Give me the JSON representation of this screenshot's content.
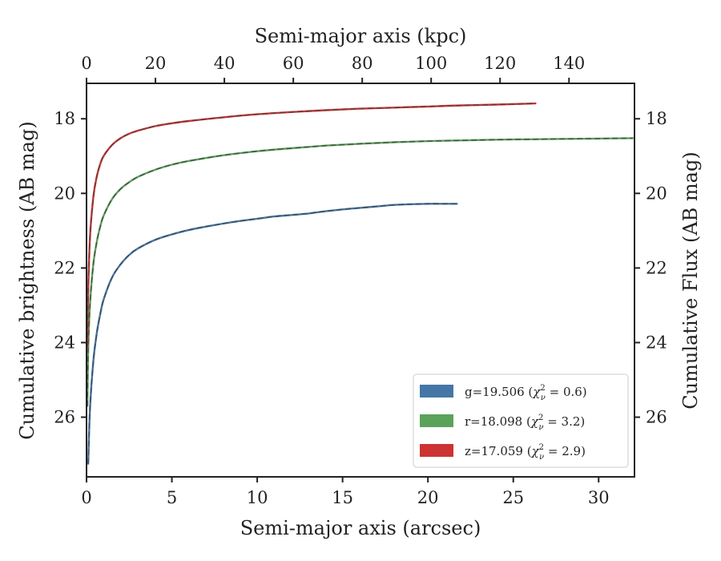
{
  "chart_data": {
    "type": "line",
    "x_bottom": {
      "label": "Semi-major axis (arcsec)",
      "range": [
        0,
        32.1
      ],
      "ticks": [
        "0",
        "5",
        "10",
        "15",
        "20",
        "25",
        "30"
      ]
    },
    "x_top": {
      "label": "Semi-major axis (kpc)",
      "range": [
        0,
        159
      ],
      "ticks": [
        "0",
        "20",
        "40",
        "60",
        "80",
        "100",
        "120",
        "140"
      ]
    },
    "y_left": {
      "label": "Cumulative brightness (AB mag)",
      "range": [
        17.05,
        27.6
      ],
      "inverted": true,
      "ticks": [
        "18",
        "20",
        "22",
        "24",
        "26"
      ]
    },
    "y_right": {
      "label": "Cumulative Flux (AB mag)",
      "range": [
        17.05,
        27.6
      ],
      "inverted": true,
      "ticks": [
        "18",
        "20",
        "22",
        "24",
        "26"
      ]
    },
    "grid": false,
    "legend": {
      "placement": "lower-right",
      "entries": [
        {
          "prefix": "g=19.506 (",
          "math": "χ",
          "sub": "ν",
          "sup": "2",
          "suffix": " = 0.6)",
          "color": "#4477a6"
        },
        {
          "prefix": "r=18.098 (",
          "math": "χ",
          "sub": "ν",
          "sup": "2",
          "suffix": " = 3.2)",
          "color": "#5ba35b"
        },
        {
          "prefix": "z=17.059 (",
          "math": "χ",
          "sub": "ν",
          "sup": "2",
          "suffix": " = 2.9)",
          "color": "#cc3333"
        }
      ]
    },
    "series": [
      {
        "name": "g",
        "color": "#4477a6",
        "x": [
          0.1,
          0.2,
          0.4,
          0.6,
          0.8,
          1.0,
          1.5,
          2.0,
          2.5,
          3.0,
          4.0,
          5.0,
          6.0,
          7.0,
          8.0,
          9.0,
          10.0,
          11.0,
          12.0,
          13.0,
          14.0,
          15.0,
          16.0,
          17.0,
          18.0,
          19.0,
          20.0,
          21.0,
          21.7
        ],
        "y": [
          27.25,
          25.8,
          24.5,
          23.75,
          23.25,
          22.85,
          22.25,
          21.9,
          21.65,
          21.48,
          21.25,
          21.1,
          20.98,
          20.89,
          20.81,
          20.74,
          20.68,
          20.62,
          20.58,
          20.54,
          20.48,
          20.43,
          20.39,
          20.35,
          20.31,
          20.29,
          20.28,
          20.28,
          20.28
        ]
      },
      {
        "name": "r",
        "color": "#5ba35b",
        "x": [
          0.05,
          0.1,
          0.2,
          0.4,
          0.6,
          0.8,
          1.0,
          1.5,
          2.0,
          2.5,
          3.0,
          4.0,
          5.0,
          6.0,
          8.0,
          10.0,
          12.0,
          14.0,
          16.0,
          18.0,
          20.0,
          22.0,
          24.0,
          26.0,
          28.0,
          30.0,
          32.0
        ],
        "y": [
          25.7,
          24.2,
          23.0,
          21.9,
          21.3,
          20.9,
          20.6,
          20.15,
          19.88,
          19.7,
          19.56,
          19.37,
          19.23,
          19.13,
          18.98,
          18.87,
          18.79,
          18.72,
          18.67,
          18.63,
          18.6,
          18.58,
          18.56,
          18.55,
          18.54,
          18.53,
          18.52
        ]
      },
      {
        "name": "z",
        "color": "#cc3333",
        "x": [
          0.05,
          0.1,
          0.2,
          0.4,
          0.6,
          0.8,
          1.0,
          1.5,
          2.0,
          2.5,
          3.0,
          4.0,
          5.0,
          6.0,
          8.0,
          10.0,
          12.0,
          14.0,
          16.0,
          18.0,
          20.0,
          22.0,
          24.0,
          26.3
        ],
        "y": [
          24.1,
          22.6,
          21.2,
          20.1,
          19.55,
          19.22,
          19.0,
          18.7,
          18.52,
          18.4,
          18.32,
          18.2,
          18.12,
          18.06,
          17.96,
          17.88,
          17.82,
          17.77,
          17.73,
          17.7,
          17.67,
          17.64,
          17.62,
          17.59
        ]
      }
    ]
  }
}
